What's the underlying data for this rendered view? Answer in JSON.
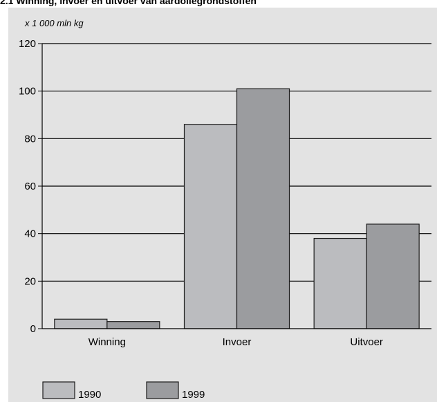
{
  "chart_data": {
    "type": "bar",
    "title": "2.1 Winning, invoer en uitvoer van aardoliegrondstoffen",
    "unit_label": "x 1 000 mln kg",
    "categories": [
      "Winning",
      "Invoer",
      "Uitvoer"
    ],
    "series": [
      {
        "name": "1990",
        "values": [
          4,
          86,
          38
        ],
        "color": "#bbbcbf"
      },
      {
        "name": "1999",
        "values": [
          3,
          101,
          44
        ],
        "color": "#9b9c9f"
      }
    ],
    "ylim": [
      0,
      120
    ],
    "yticks": [
      "0",
      "20",
      "40",
      "60",
      "80",
      "100",
      "120"
    ],
    "grid": true,
    "legend": "bottom-left",
    "panel_color": "#e3e3e3"
  }
}
